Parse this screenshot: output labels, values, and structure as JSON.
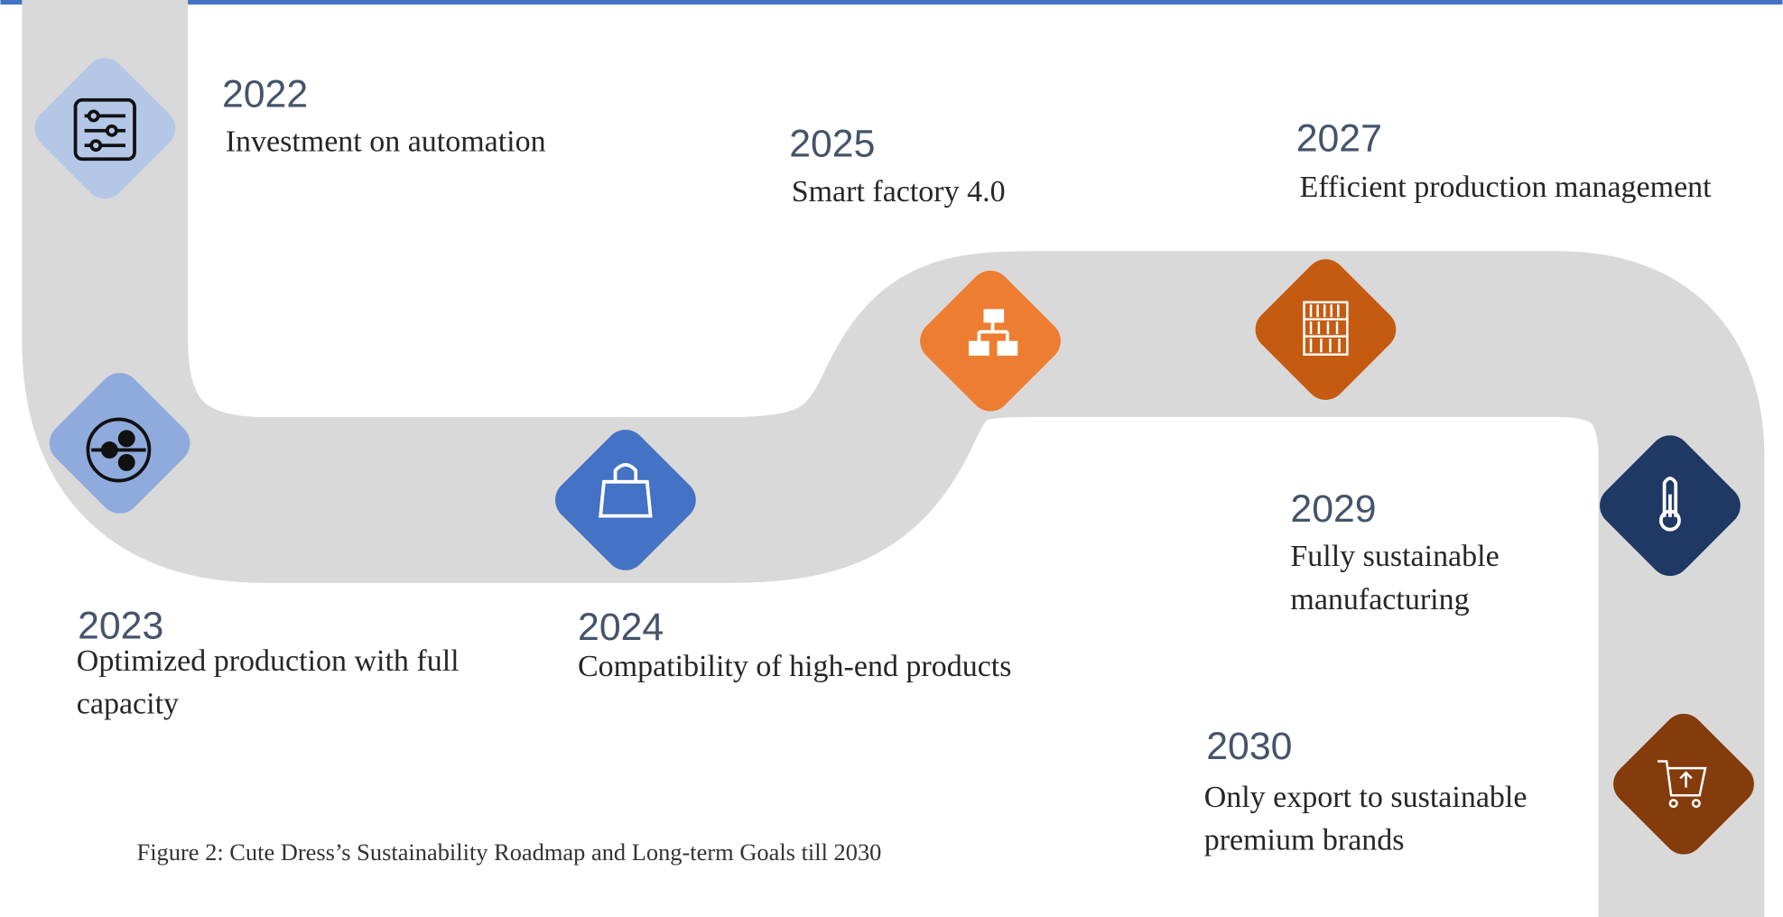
{
  "milestones": [
    {
      "year": "2022",
      "lines": [
        "Investment on automation"
      ]
    },
    {
      "year": "2023",
      "lines": [
        "Optimized production with full",
        "capacity"
      ]
    },
    {
      "year": "2024",
      "lines": [
        "Compatibility of high-end products"
      ]
    },
    {
      "year": "2025",
      "lines": [
        "Smart factory 4.0"
      ]
    },
    {
      "year": "2027",
      "lines": [
        "Efficient production management"
      ]
    },
    {
      "year": "2029",
      "lines": [
        "Fully sustainable",
        "manufacturing"
      ]
    },
    {
      "year": "2030",
      "lines": [
        "Only export to sustainable",
        "premium brands"
      ]
    }
  ],
  "caption": "Figure 2: Cute Dress’s Sustainability Roadmap and Long-term Goals till 2030"
}
